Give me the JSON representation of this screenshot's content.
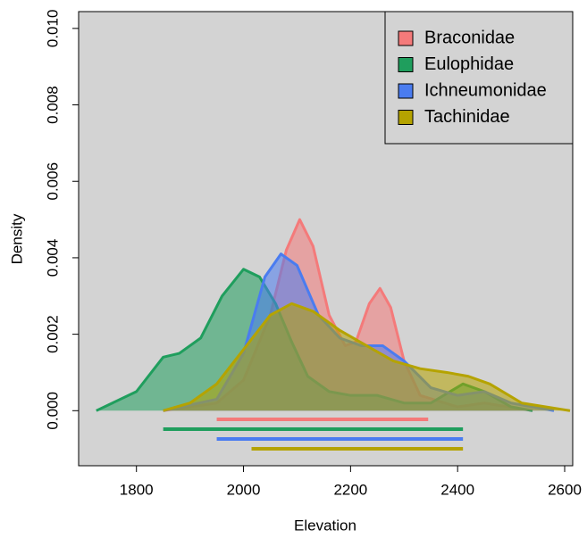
{
  "chart_data": {
    "type": "density",
    "x_label": "Elevation",
    "y_label": "Density",
    "xlim": [
      1692,
      2615
    ],
    "ylim": [
      -0.00144,
      0.01044
    ],
    "xticks": [
      1800,
      2000,
      2200,
      2400,
      2600
    ],
    "yticks": [
      {
        "value": 0,
        "label": "0.000"
      },
      {
        "value": 0.002,
        "label": "0.002"
      },
      {
        "value": 0.004,
        "label": "0.004"
      },
      {
        "value": 0.006,
        "label": "0.006"
      },
      {
        "value": 0.008,
        "label": "0.008"
      },
      {
        "value": 0.01,
        "label": "0.010"
      }
    ],
    "legend_position": "top-right",
    "series": [
      {
        "name": "Braconidae",
        "color": "#f47a7a",
        "x": [
          1850,
          1950,
          2000,
          2050,
          2080,
          2105,
          2130,
          2160,
          2190,
          2210,
          2235,
          2255,
          2275,
          2300,
          2330,
          2400,
          2450,
          2540
        ],
        "values": [
          0,
          0.0002,
          0.0008,
          0.0025,
          0.0042,
          0.005,
          0.0043,
          0.0025,
          0.0017,
          0.0018,
          0.0028,
          0.0032,
          0.0027,
          0.0013,
          0.0004,
          0.0001,
          0.0002,
          0
        ],
        "range": [
          1950,
          2345
        ]
      },
      {
        "name": "Eulophidae",
        "color": "#1f9e5d",
        "x": [
          1725,
          1800,
          1850,
          1880,
          1920,
          1960,
          2000,
          2030,
          2060,
          2090,
          2120,
          2160,
          2200,
          2250,
          2300,
          2350,
          2410,
          2450,
          2500,
          2540
        ],
        "values": [
          0,
          0.0005,
          0.0014,
          0.0015,
          0.0019,
          0.003,
          0.0037,
          0.0035,
          0.0028,
          0.0018,
          0.0009,
          0.0005,
          0.0004,
          0.0004,
          0.0002,
          0.0002,
          0.0007,
          0.0005,
          0.0001,
          0
        ],
        "range": [
          1850,
          2410
        ]
      },
      {
        "name": "Ichneumonidae",
        "color": "#4a7cf0",
        "x": [
          1850,
          1950,
          2000,
          2040,
          2070,
          2100,
          2140,
          2180,
          2220,
          2260,
          2300,
          2350,
          2400,
          2450,
          2500,
          2580
        ],
        "values": [
          0,
          0.0003,
          0.0015,
          0.0035,
          0.0041,
          0.0038,
          0.0025,
          0.0019,
          0.0017,
          0.0017,
          0.0013,
          0.0006,
          0.0004,
          0.0005,
          0.0002,
          0
        ],
        "range": [
          1950,
          2410
        ]
      },
      {
        "name": "Tachinidae",
        "color": "#b5a300",
        "x": [
          1850,
          1900,
          1950,
          2000,
          2050,
          2090,
          2130,
          2180,
          2230,
          2280,
          2330,
          2380,
          2420,
          2460,
          2520,
          2610
        ],
        "values": [
          0,
          0.0002,
          0.0007,
          0.0016,
          0.0025,
          0.0028,
          0.0026,
          0.0021,
          0.0017,
          0.0013,
          0.0011,
          0.001,
          0.0009,
          0.0007,
          0.0002,
          0
        ],
        "range": [
          2015,
          2410
        ]
      }
    ]
  }
}
